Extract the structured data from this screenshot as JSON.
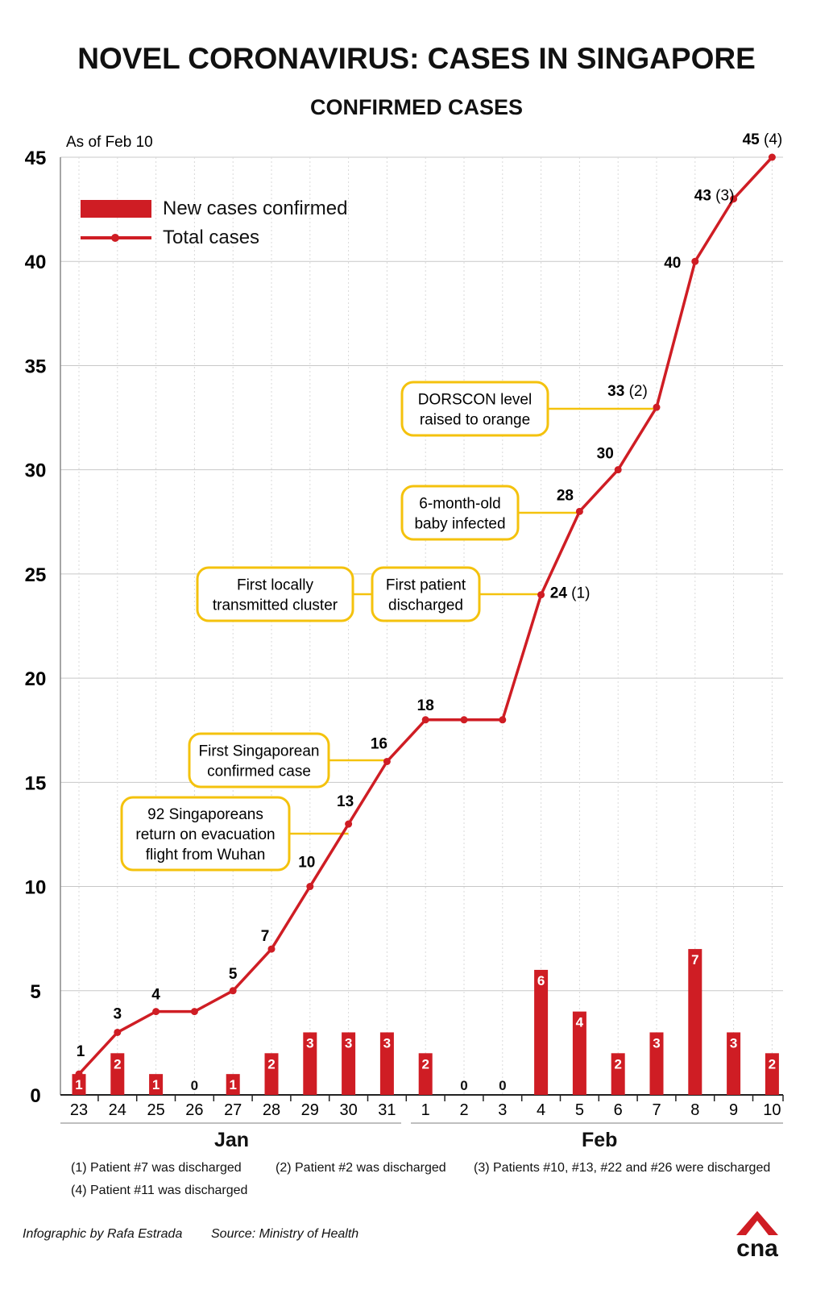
{
  "title": "NOVEL CORONAVIRUS: CASES IN SINGAPORE",
  "subtitle": "CONFIRMED CASES",
  "chart_data": {
    "type": "bar+line",
    "as_of": "As of Feb 10",
    "ylim": [
      0,
      45
    ],
    "yticks": [
      "0",
      "5",
      "10",
      "15",
      "20",
      "25",
      "30",
      "35",
      "40",
      "45"
    ],
    "categories": [
      "23",
      "24",
      "25",
      "26",
      "27",
      "28",
      "29",
      "30",
      "31",
      "1",
      "2",
      "3",
      "4",
      "5",
      "6",
      "7",
      "8",
      "9",
      "10"
    ],
    "months": [
      "Jan",
      "Feb"
    ],
    "series": [
      {
        "name": "New cases confirmed",
        "type": "bar",
        "values": [
          1,
          2,
          1,
          0,
          1,
          2,
          3,
          3,
          3,
          2,
          0,
          0,
          6,
          4,
          2,
          3,
          7,
          3,
          2
        ]
      },
      {
        "name": "Total cases",
        "type": "line",
        "values": [
          1,
          3,
          4,
          4,
          5,
          7,
          10,
          13,
          16,
          18,
          18,
          18,
          24,
          28,
          30,
          33,
          40,
          43,
          45
        ]
      }
    ],
    "point_labels": [
      {
        "i": 0,
        "value": "1",
        "note": ""
      },
      {
        "i": 1,
        "value": "3",
        "note": ""
      },
      {
        "i": 2,
        "value": "4",
        "note": ""
      },
      {
        "i": 4,
        "value": "5",
        "note": ""
      },
      {
        "i": 5,
        "value": "7",
        "note": ""
      },
      {
        "i": 6,
        "value": "10",
        "note": ""
      },
      {
        "i": 7,
        "value": "13",
        "note": ""
      },
      {
        "i": 8,
        "value": "16",
        "note": ""
      },
      {
        "i": 9,
        "value": "18",
        "note": ""
      },
      {
        "i": 12,
        "value": "24",
        "note": "(1)"
      },
      {
        "i": 13,
        "value": "28",
        "note": ""
      },
      {
        "i": 14,
        "value": "30",
        "note": ""
      },
      {
        "i": 15,
        "value": "33",
        "note": "(2)"
      },
      {
        "i": 16,
        "value": "40",
        "note": ""
      },
      {
        "i": 17,
        "value": "43",
        "note": "(3)"
      },
      {
        "i": 18,
        "value": "45",
        "note": "(4)"
      }
    ],
    "annotations": [
      {
        "lines": [
          "92 Singaporeans",
          "return on evacuation",
          "flight from Wuhan"
        ],
        "point": 7
      },
      {
        "lines": [
          "First Singaporean",
          "confirmed case"
        ],
        "point": 8
      },
      {
        "lines": [
          "First locally",
          "transmitted cluster"
        ],
        "point": 12
      },
      {
        "lines": [
          "First patient",
          "discharged"
        ],
        "point": 12
      },
      {
        "lines": [
          "6-month-old",
          "baby infected"
        ],
        "point": 13
      },
      {
        "lines": [
          "DORSCON level",
          "raised to orange"
        ],
        "point": 15
      }
    ],
    "colors": {
      "bar": "#cf1d24",
      "line": "#cf1d24",
      "callout_border": "#f4c20d",
      "grid": "#c8c8c8"
    }
  },
  "legend": {
    "bar": "New cases confirmed",
    "line": "Total cases"
  },
  "notes": [
    "(1) Patient #7 was discharged",
    "(2) Patient #2 was discharged",
    "(3) Patients #10, #13, #22 and #26 were discharged",
    "(4) Patient #11 was discharged"
  ],
  "credit": "Infographic by Rafa Estrada",
  "source": "Source: Ministry of Health",
  "logo_text": "cna"
}
